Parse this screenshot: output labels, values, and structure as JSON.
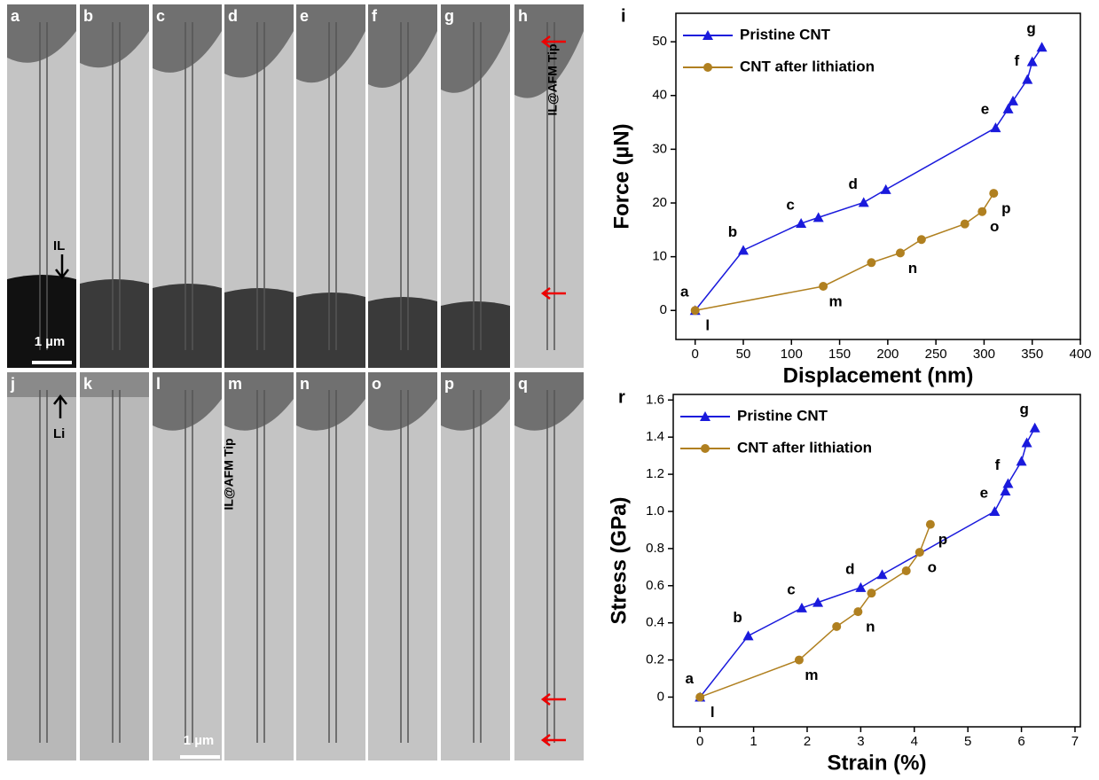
{
  "micrographs": {
    "panels": [
      {
        "label": "a"
      },
      {
        "label": "b"
      },
      {
        "label": "c"
      },
      {
        "label": "d"
      },
      {
        "label": "e"
      },
      {
        "label": "f"
      },
      {
        "label": "g"
      },
      {
        "label": "h"
      },
      {
        "label": "j"
      },
      {
        "label": "k"
      },
      {
        "label": "l"
      },
      {
        "label": "m"
      },
      {
        "label": "n"
      },
      {
        "label": "o"
      },
      {
        "label": "p"
      },
      {
        "label": "q"
      }
    ],
    "annotations": {
      "il": "IL",
      "scale_top": "1 µm",
      "tip_h": "IL@AFM Tip",
      "li": "Li",
      "tip_l": "IL@AFM Tip",
      "scale_bottom": "1 µm"
    }
  },
  "chart_data": [
    {
      "type": "line",
      "panel_label": "i",
      "x_label": "Displacement (nm)",
      "y_label": "Force (µN)",
      "xlim": [
        -20,
        400
      ],
      "ylim": [
        -5.4,
        55.3
      ],
      "xticks": [
        0,
        50,
        100,
        150,
        200,
        250,
        300,
        350,
        400
      ],
      "yticks": [
        0,
        10,
        20,
        30,
        40,
        50
      ],
      "legend": "upper left",
      "series": [
        {
          "name": "Pristine CNT",
          "color": "#1a1adc",
          "marker": "triangle",
          "x": [
            0,
            50,
            110,
            128,
            175,
            198,
            312,
            325,
            330,
            345,
            350,
            360
          ],
          "values": [
            0,
            11.2,
            16.2,
            17.3,
            20.1,
            22.5,
            34,
            37.5,
            39,
            43,
            46.3,
            49
          ],
          "point_labels": [
            "a",
            "b",
            "c",
            null,
            "d",
            null,
            "e",
            null,
            null,
            "f",
            null,
            "g"
          ]
        },
        {
          "name": "CNT after lithiation",
          "color": "#b08020",
          "marker": "circle",
          "x": [
            0,
            133,
            183,
            213,
            235,
            280,
            298,
            310
          ],
          "values": [
            0,
            4.5,
            8.9,
            10.7,
            13.2,
            16.1,
            18.4,
            21.8
          ],
          "point_labels": [
            "l",
            "m",
            null,
            "n",
            null,
            null,
            "o",
            "p"
          ]
        }
      ]
    },
    {
      "type": "line",
      "panel_label": "r",
      "x_label": "Strain (%)",
      "y_label": "Stress (GPa)",
      "xlim": [
        -0.5,
        7.1
      ],
      "ylim": [
        -0.16,
        1.63
      ],
      "xticks": [
        0,
        1,
        2,
        3,
        4,
        5,
        6,
        7
      ],
      "yticks": [
        0,
        0.2,
        0.4,
        0.6,
        0.8,
        {
          "value": 1,
          "label": "1.0"
        },
        1.2,
        1.4,
        1.6
      ],
      "legend": "upper left",
      "series": [
        {
          "name": "Pristine CNT",
          "color": "#1a1adc",
          "marker": "triangle",
          "x": [
            0,
            0.9,
            1.9,
            2.2,
            3.0,
            3.4,
            5.5,
            5.7,
            5.75,
            6.0,
            6.1,
            6.25
          ],
          "values": [
            0,
            0.33,
            0.48,
            0.51,
            0.59,
            0.66,
            1.0,
            1.11,
            1.15,
            1.27,
            1.37,
            1.45
          ],
          "point_labels": [
            "a",
            "b",
            "c",
            null,
            "d",
            null,
            "e",
            null,
            "f",
            null,
            null,
            "g"
          ]
        },
        {
          "name": "CNT after lithiation",
          "color": "#b08020",
          "marker": "circle",
          "x": [
            0,
            1.85,
            2.55,
            2.95,
            3.2,
            3.85,
            4.1,
            4.3
          ],
          "values": [
            0,
            0.2,
            0.38,
            0.46,
            0.56,
            0.68,
            0.78,
            0.93
          ],
          "point_labels": [
            "l",
            "m",
            null,
            "n",
            null,
            null,
            "o",
            "p"
          ]
        }
      ]
    }
  ]
}
